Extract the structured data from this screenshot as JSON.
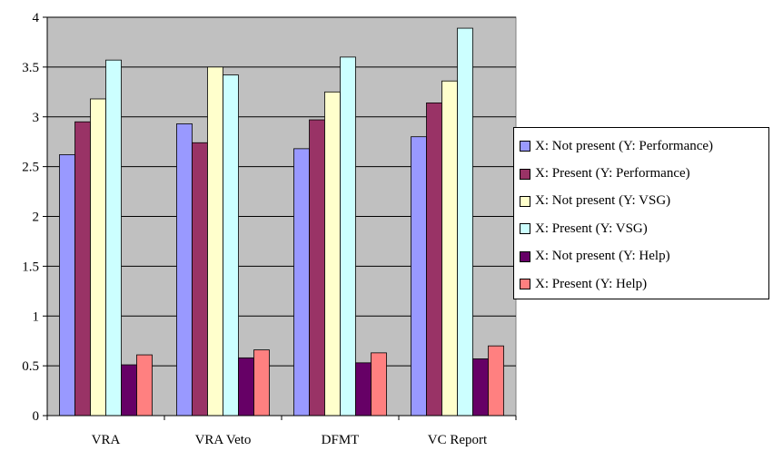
{
  "chart_data": {
    "type": "bar",
    "categories": [
      "VRA",
      "VRA Veto",
      "DFMT",
      "VC Report"
    ],
    "series": [
      {
        "name": "X: Not present (Y: Performance)",
        "color": "#9999ff",
        "values": [
          2.62,
          2.93,
          2.68,
          2.8
        ]
      },
      {
        "name": "X: Present (Y: Performance)",
        "color": "#993366",
        "values": [
          2.95,
          2.74,
          2.97,
          3.14
        ]
      },
      {
        "name": "X: Not present (Y: VSG)",
        "color": "#ffffcc",
        "values": [
          3.18,
          3.5,
          3.25,
          3.36
        ]
      },
      {
        "name": "X: Present (Y: VSG)",
        "color": "#ccffff",
        "values": [
          3.57,
          3.42,
          3.6,
          3.89
        ]
      },
      {
        "name": "X: Not present (Y: Help)",
        "color": "#660066",
        "values": [
          0.51,
          0.58,
          0.53,
          0.57
        ]
      },
      {
        "name": "X: Present (Y: Help)",
        "color": "#ff8080",
        "values": [
          0.61,
          0.66,
          0.63,
          0.7
        ]
      }
    ],
    "yticks": [
      "0",
      "0.5",
      "1",
      "1.5",
      "2",
      "2.5",
      "3",
      "3.5",
      "4"
    ],
    "ylim": [
      0,
      4
    ],
    "grid": true,
    "plot_background": "#c0c0c0",
    "legend_position": "right"
  }
}
